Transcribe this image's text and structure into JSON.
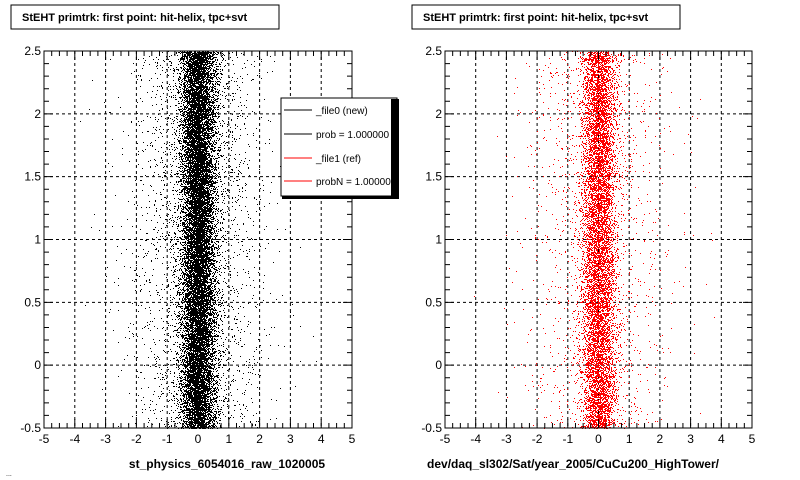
{
  "footer_text": "...",
  "legend": {
    "entries": [
      {
        "label": "_file0 (new)",
        "color": "#000000"
      },
      {
        "label": "prob = 1.000000",
        "color": "#000000"
      },
      {
        "label": "_file1 (ref)",
        "color": "#ff0000"
      },
      {
        "label": "probN = 1.000000",
        "color": "#ff0000"
      }
    ]
  },
  "chart_data": [
    {
      "type": "scatter",
      "title": "StEHT primtrk: first point: hit-helix, tpc+svt",
      "xlabel": "st_physics_6054016_raw_1020005",
      "ylabel": "",
      "xlim": [
        -5,
        5
      ],
      "ylim": [
        -0.5,
        2.5
      ],
      "xticks": [
        "-5",
        "-4",
        "-3",
        "-2",
        "-1",
        "0",
        "1",
        "2",
        "3",
        "4",
        "5"
      ],
      "yticks": [
        "-0.5",
        "0",
        "0.5",
        "1",
        "1.5",
        "2",
        "2.5"
      ],
      "grid": true,
      "color": "#000000",
      "legend_position": "top-right",
      "distribution": {
        "center_x": 0.0,
        "core_sigma": 0.28,
        "tail_sigma": 1.1,
        "approx_points": 21000
      }
    },
    {
      "type": "scatter",
      "title": "StEHT primtrk: first point: hit-helix, tpc+svt",
      "xlabel": "dev/daq_sl302/Sat/year_2005/CuCu200_HighTower/",
      "ylabel": "",
      "xlim": [
        -5,
        5
      ],
      "ylim": [
        -0.5,
        2.5
      ],
      "xticks": [
        "-5",
        "-4",
        "-3",
        "-2",
        "-1",
        "0",
        "1",
        "2",
        "3",
        "4",
        "5"
      ],
      "yticks": [
        "-0.5",
        "0",
        "0.5",
        "1",
        "1.5",
        "2",
        "2.5"
      ],
      "grid": true,
      "color": "#ff0000",
      "distribution": {
        "center_x": 0.0,
        "core_sigma": 0.28,
        "tail_sigma": 1.1,
        "approx_points": 11000
      }
    }
  ]
}
